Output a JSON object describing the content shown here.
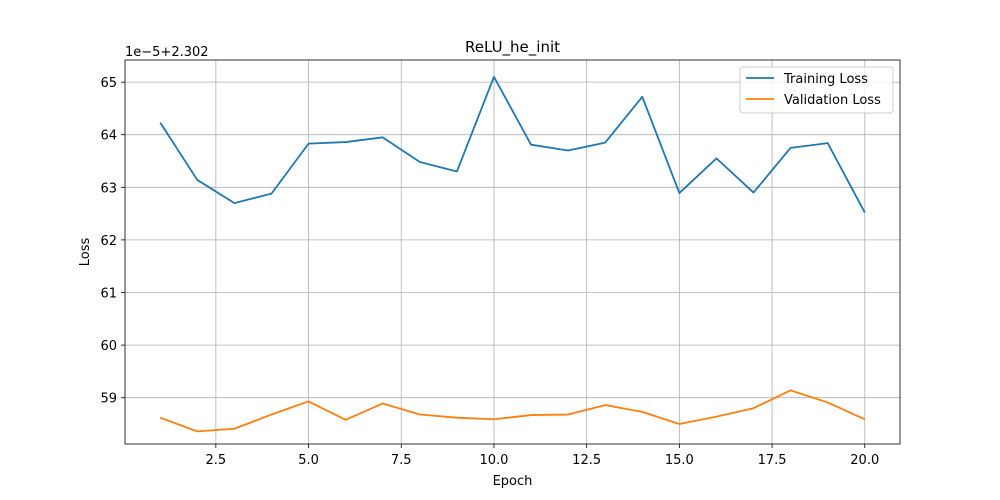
{
  "chart_data": {
    "type": "line",
    "title": "ReLU_he_init",
    "xlabel": "Epoch",
    "ylabel": "Loss",
    "y_offset_label": "1e−5+2.302",
    "xlim": [
      0.05,
      20.95
    ],
    "ylim": [
      58.12,
      65.42
    ],
    "xticks": [
      2.5,
      5.0,
      7.5,
      10.0,
      12.5,
      15.0,
      17.5,
      20.0
    ],
    "xtick_labels": [
      "2.5",
      "5.0",
      "7.5",
      "10.0",
      "12.5",
      "15.0",
      "17.5",
      "20.0"
    ],
    "yticks": [
      59,
      60,
      61,
      62,
      63,
      64,
      65
    ],
    "ytick_labels": [
      "59",
      "60",
      "61",
      "62",
      "63",
      "64",
      "65"
    ],
    "grid": true,
    "legend_position": "top-right",
    "x": [
      1,
      2,
      3,
      4,
      5,
      6,
      7,
      8,
      9,
      10,
      11,
      12,
      13,
      14,
      15,
      16,
      17,
      18,
      19,
      20
    ],
    "series": [
      {
        "name": "Training Loss",
        "color": "#1f77b4",
        "values": [
          64.23,
          63.14,
          62.7,
          62.88,
          63.83,
          63.86,
          63.95,
          63.48,
          63.3,
          65.1,
          63.81,
          63.7,
          63.85,
          64.72,
          62.89,
          63.55,
          62.9,
          63.75,
          63.84,
          62.52
        ]
      },
      {
        "name": "Validation Loss",
        "color": "#ff7f0e",
        "values": [
          58.62,
          58.36,
          58.41,
          58.68,
          58.93,
          58.58,
          58.89,
          58.68,
          58.62,
          58.59,
          58.67,
          58.68,
          58.86,
          58.73,
          58.5,
          58.64,
          58.8,
          59.14,
          58.91,
          58.59
        ]
      }
    ]
  }
}
